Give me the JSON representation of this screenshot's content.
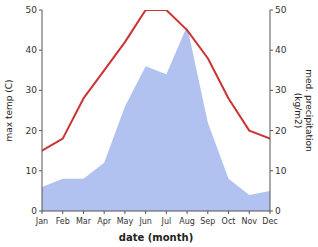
{
  "chart_data": {
    "type": "line",
    "categories": [
      "Jan",
      "Feb",
      "Mar",
      "Apr",
      "May",
      "Jun",
      "Jul",
      "Aug",
      "Sep",
      "Oct",
      "Nov",
      "Dec"
    ],
    "xlabel": "date (month)",
    "ylabel": "max temp (C)",
    "y2label": "med. precipitation\n(kg/m2)",
    "series": [
      {
        "type": "area",
        "axis": "y2",
        "color": "#aabbee",
        "values": [
          6,
          8,
          8,
          12,
          26,
          36,
          34,
          46,
          22,
          8,
          4,
          5
        ]
      },
      {
        "type": "line",
        "color": "#cc3333",
        "values": [
          15,
          18,
          28,
          35,
          42,
          50,
          50,
          45,
          38,
          28,
          20,
          18
        ]
      }
    ],
    "ylim": [
      0,
      50
    ],
    "yticks": [
      0,
      10,
      20,
      30,
      40,
      50
    ],
    "y2lim": [
      0,
      50
    ],
    "y2ticks": [
      0,
      10,
      20,
      30,
      40,
      50
    ],
    "grid": false
  }
}
